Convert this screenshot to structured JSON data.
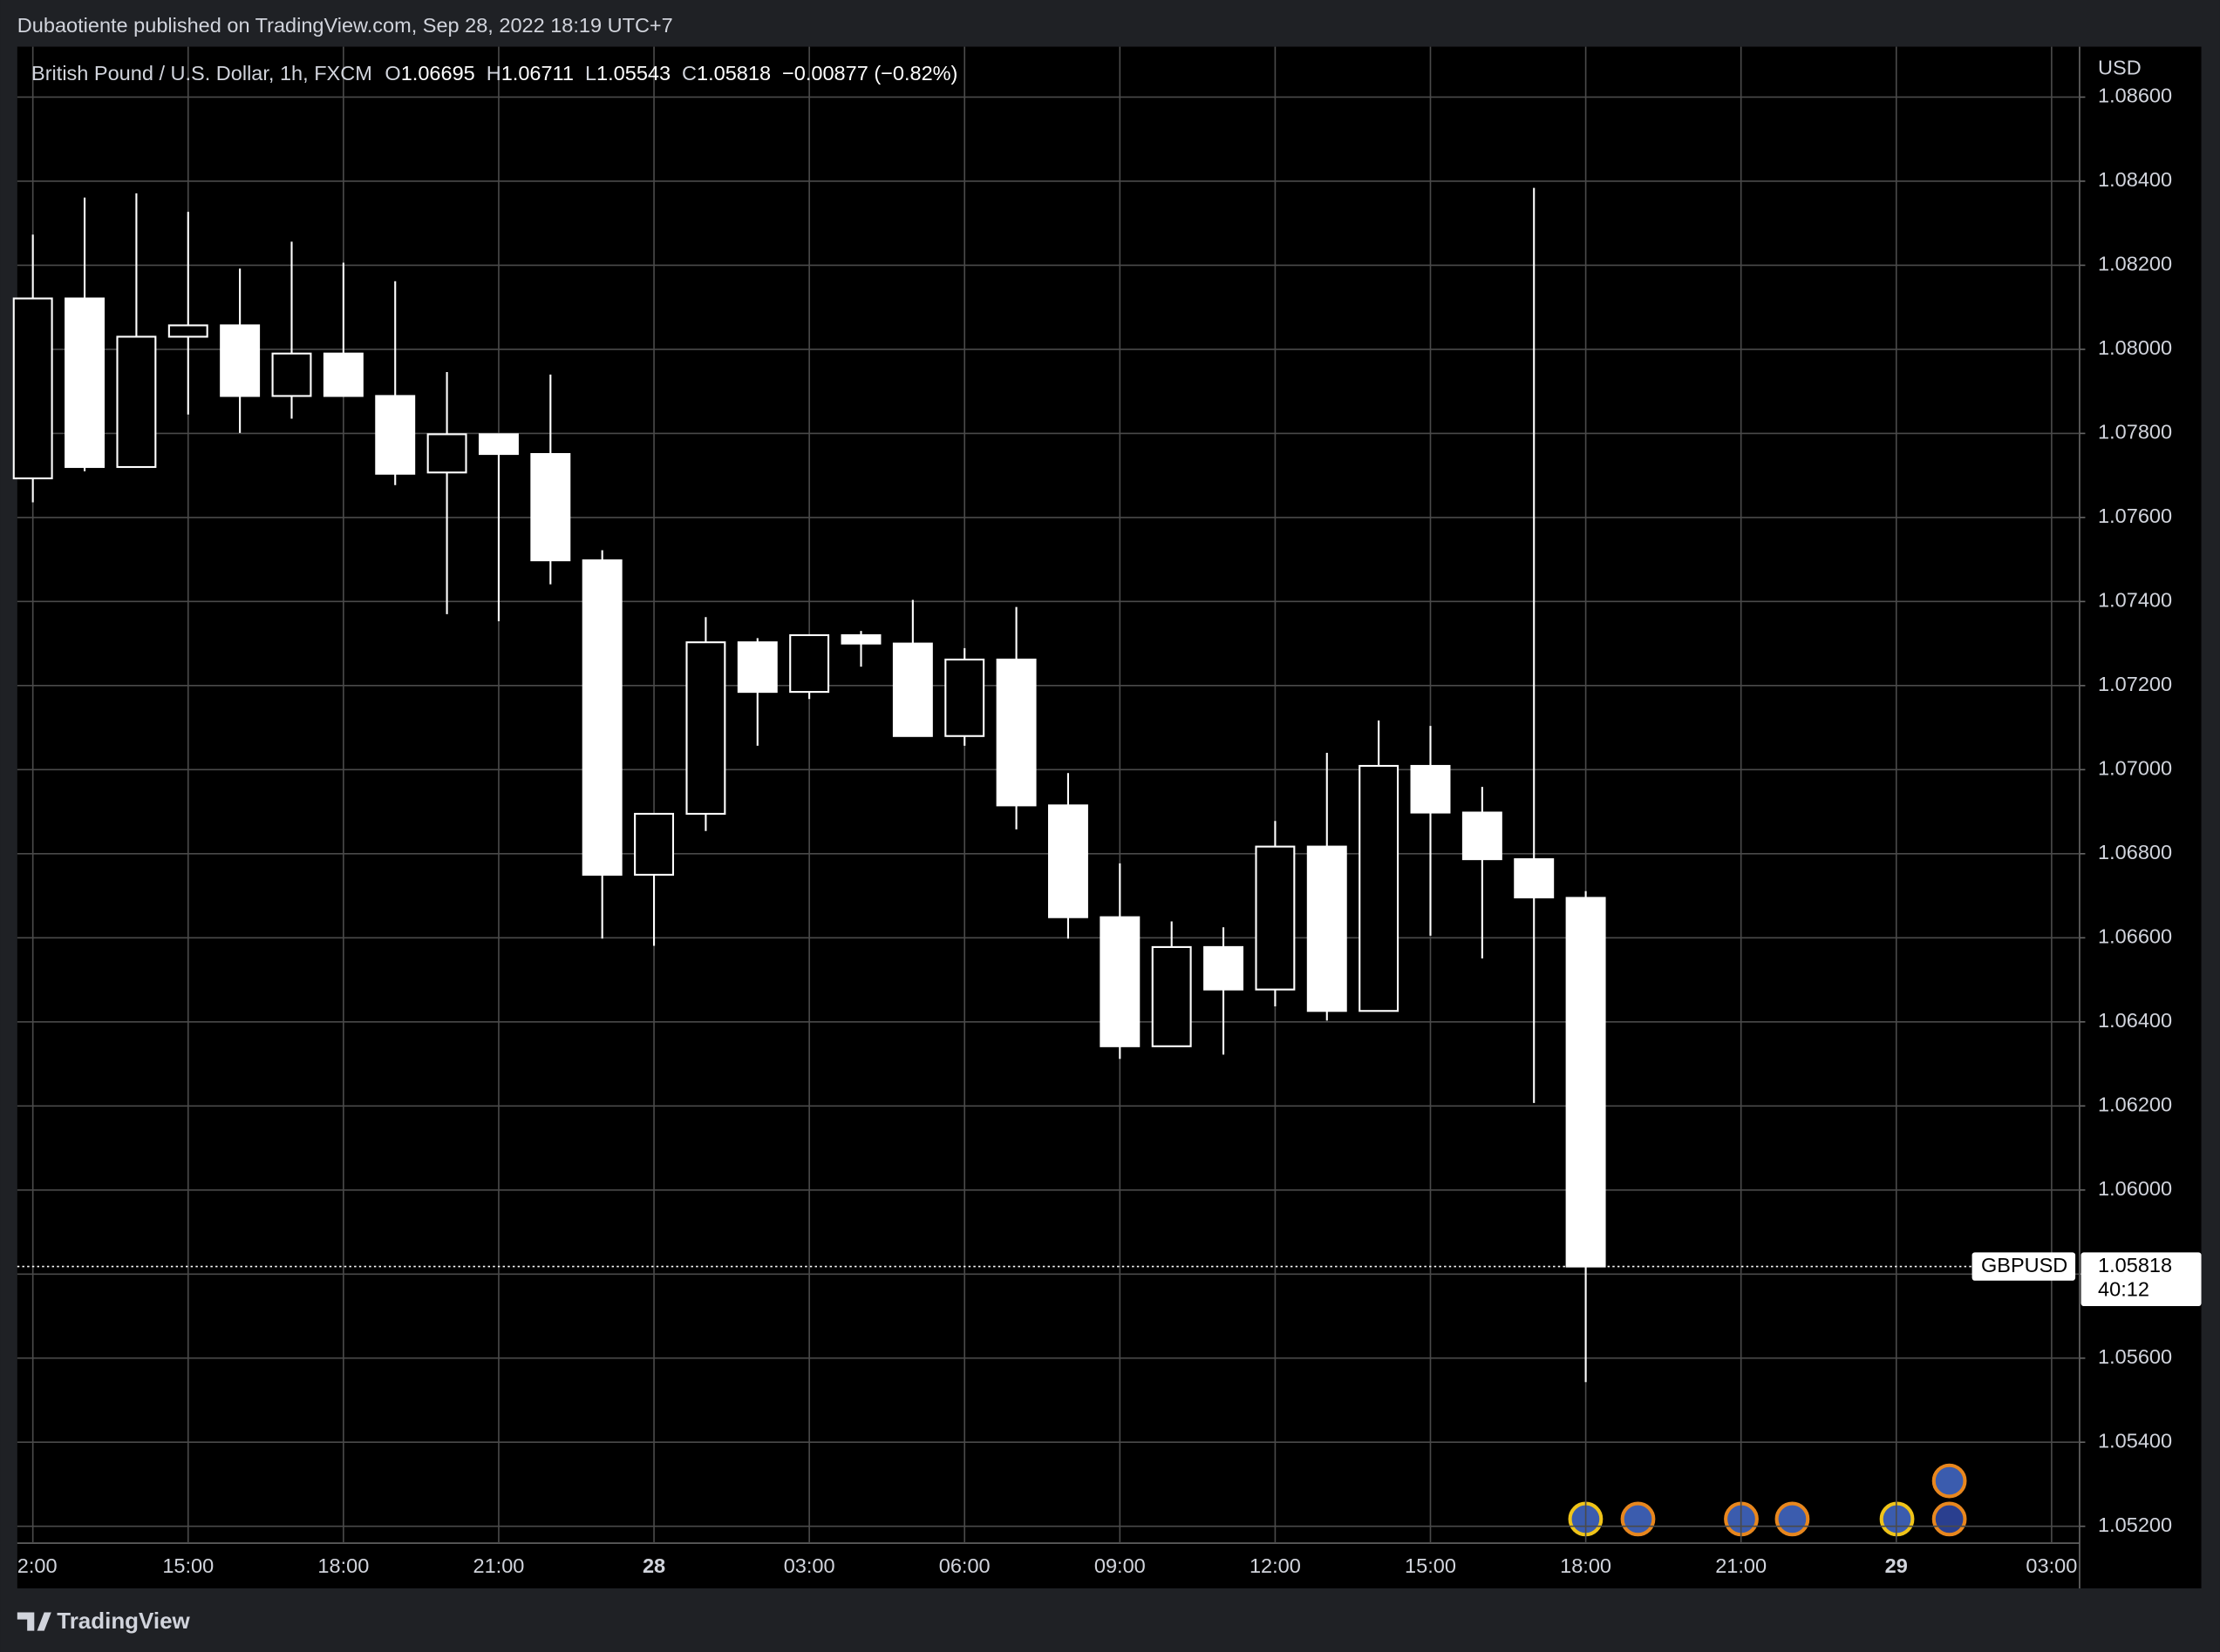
{
  "header": {
    "publisher": "Dubaotiente published on TradingView.com, Sep 28, 2022 18:19 UTC+7"
  },
  "footer": {
    "brand": "TradingView"
  },
  "chart_data": {
    "type": "candlestick",
    "title": "British Pound / U.S. Dollar, 1h, FXCM",
    "ohlc_keys": [
      "O",
      "H",
      "L",
      "C"
    ],
    "change": "−0.00877 (−0.82%)",
    "symbol": "GBPUSD",
    "currency": "USD",
    "countdown": "40:12",
    "color": "#ffffff",
    "grid": true,
    "categories": [
      "2:00",
      null,
      null,
      "15:00",
      null,
      null,
      "18:00",
      null,
      null,
      "21:00",
      null,
      null,
      "28",
      null,
      null,
      "03:00",
      null,
      null,
      "06:00",
      null,
      null,
      "09:00",
      null,
      null,
      "12:00",
      null,
      null,
      "15:00",
      null,
      null,
      "18:00",
      null,
      null,
      "21:00",
      null,
      null,
      "29",
      null,
      null,
      "03:00"
    ],
    "open": [
      1.07693,
      1.08121,
      1.0772,
      1.0803,
      1.08057,
      1.07889,
      1.0799,
      1.07889,
      1.07707,
      1.07798,
      1.07751,
      1.07498,
      1.0675,
      1.06895,
      1.07303,
      1.07185,
      1.0732,
      1.073,
      1.0708,
      1.07262,
      1.06915,
      1.06649,
      1.06342,
      1.06578,
      1.06477,
      1.06817,
      1.06426,
      1.07009,
      1.06898,
      1.06787,
      1.06695,
      null,
      null,
      null,
      null,
      null,
      null,
      null,
      null,
      null
    ],
    "high": [
      1.08273,
      1.08361,
      1.08371,
      1.08327,
      1.08192,
      1.08256,
      1.08206,
      1.08162,
      1.07946,
      1.07798,
      1.0794,
      1.07522,
      1.06895,
      1.07363,
      1.07313,
      1.0732,
      1.0733,
      1.07404,
      1.07289,
      1.07387,
      1.06992,
      1.06777,
      1.06639,
      1.06625,
      1.06878,
      1.0704,
      1.07117,
      1.07104,
      1.06959,
      1.08384,
      1.06711,
      null,
      null,
      null,
      null,
      null,
      null,
      null,
      null,
      null
    ],
    "low": [
      1.07636,
      1.0771,
      1.0772,
      1.07845,
      1.07801,
      1.07835,
      1.07889,
      1.07677,
      1.0737,
      1.07353,
      1.07441,
      1.06598,
      1.06581,
      1.06854,
      1.07057,
      1.07168,
      1.07245,
      1.0708,
      1.07057,
      1.06858,
      1.06598,
      1.06312,
      1.06342,
      1.06322,
      1.06437,
      1.06403,
      1.06426,
      1.06605,
      1.06551,
      1.06207,
      1.05543,
      null,
      null,
      null,
      null,
      null,
      null,
      null,
      null,
      null
    ],
    "close": [
      1.08121,
      1.0772,
      1.0803,
      1.08057,
      1.07889,
      1.0799,
      1.07889,
      1.07704,
      1.07798,
      1.07751,
      1.07498,
      1.0675,
      1.06895,
      1.07303,
      1.07185,
      1.0732,
      1.073,
      1.0708,
      1.07262,
      1.06915,
      1.06649,
      1.06342,
      1.06578,
      1.06477,
      1.06817,
      1.06426,
      1.07009,
      1.06898,
      1.06787,
      1.06696,
      1.05818,
      null,
      null,
      null,
      null,
      null,
      null,
      null,
      null,
      null
    ],
    "ylim": [
      1.0516,
      1.0872
    ],
    "yticks": [
      {
        "value": 1.086,
        "label": "1.08600"
      },
      {
        "value": 1.084,
        "label": "1.08400"
      },
      {
        "value": 1.082,
        "label": "1.08200"
      },
      {
        "value": 1.08,
        "label": "1.08000"
      },
      {
        "value": 1.078,
        "label": "1.07800"
      },
      {
        "value": 1.076,
        "label": "1.07600"
      },
      {
        "value": 1.074,
        "label": "1.07400"
      },
      {
        "value": 1.072,
        "label": "1.07200"
      },
      {
        "value": 1.07,
        "label": "1.07000"
      },
      {
        "value": 1.068,
        "label": "1.06800"
      },
      {
        "value": 1.066,
        "label": "1.06600"
      },
      {
        "value": 1.064,
        "label": "1.06400"
      },
      {
        "value": 1.062,
        "label": "1.06200"
      },
      {
        "value": 1.06,
        "label": "1.06000"
      },
      {
        "value": 1.058,
        "label": "1.05800"
      },
      {
        "value": 1.056,
        "label": "1.05600"
      },
      {
        "value": 1.054,
        "label": "1.05400"
      },
      {
        "value": 1.052,
        "label": "1.05200"
      }
    ]
  }
}
